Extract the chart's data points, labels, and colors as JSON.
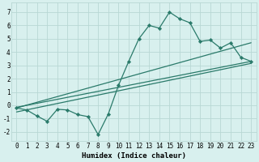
{
  "xlabel": "Humidex (Indice chaleur)",
  "xlim": [
    -0.5,
    23.5
  ],
  "ylim": [
    -2.7,
    7.7
  ],
  "xticks": [
    0,
    1,
    2,
    3,
    4,
    5,
    6,
    7,
    8,
    9,
    10,
    11,
    12,
    13,
    14,
    15,
    16,
    17,
    18,
    19,
    20,
    21,
    22,
    23
  ],
  "yticks": [
    -2,
    -1,
    0,
    1,
    2,
    3,
    4,
    5,
    6,
    7
  ],
  "scatter_x": [
    0,
    1,
    2,
    3,
    4,
    5,
    6,
    7,
    8,
    9,
    10,
    11,
    12,
    13,
    14,
    15,
    16,
    17,
    18,
    19,
    20,
    21,
    22,
    23
  ],
  "scatter_y": [
    -0.2,
    -0.35,
    -0.8,
    -1.2,
    -0.3,
    -0.35,
    -0.7,
    -0.85,
    -2.2,
    -0.65,
    1.5,
    3.3,
    5.0,
    6.0,
    5.8,
    7.0,
    6.5,
    6.2,
    4.8,
    4.9,
    4.3,
    4.7,
    3.6,
    3.3
  ],
  "line1_x": [
    0,
    23
  ],
  "line1_y": [
    -0.2,
    4.7
  ],
  "line2_x": [
    0,
    23
  ],
  "line2_y": [
    -0.15,
    3.3
  ],
  "line3_x": [
    0,
    23
  ],
  "line3_y": [
    -0.5,
    3.15
  ],
  "color": "#2a7a6a",
  "bg_color": "#d8f0ee",
  "grid_color": "#b8d8d4",
  "marker": "D",
  "marker_size": 2.2,
  "line_width": 0.9,
  "tick_fontsize": 5.5,
  "xlabel_fontsize": 6.5
}
